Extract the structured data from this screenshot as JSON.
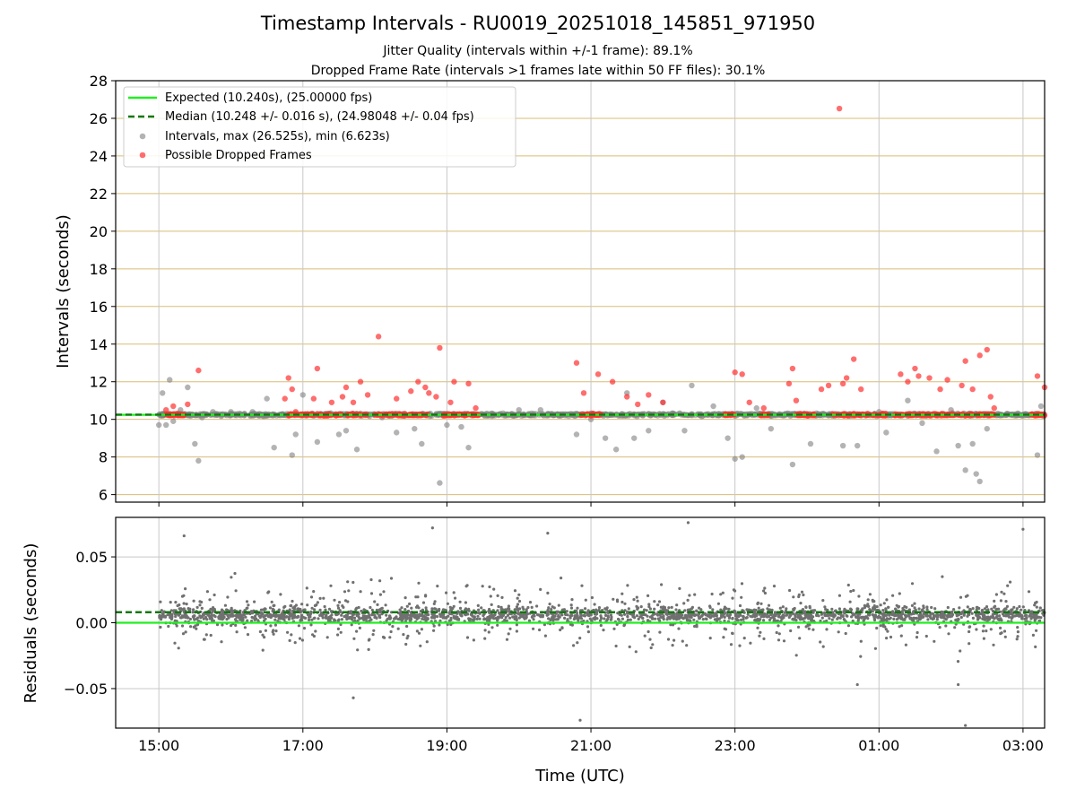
{
  "header": {
    "title": "Timestamp Intervals - RU0019_20251018_145851_971950",
    "subtitle_1": "Jitter Quality (intervals within +/-1 frame): 89.1%",
    "subtitle_2": "Dropped Frame Rate (intervals >1 frames late within 50 FF files): 30.1%"
  },
  "chart_data": [
    {
      "type": "scatter",
      "panel": "top",
      "xlabel": "",
      "ylabel": "Intervals (seconds)",
      "ylim": [
        5.6,
        28
      ],
      "yticks": [
        "6",
        "8",
        "10",
        "12",
        "14",
        "16",
        "18",
        "20",
        "22",
        "24",
        "26",
        "28"
      ],
      "grid": {
        "horizontal": true,
        "vertical": true,
        "horizontal_color": "#d9bd75",
        "vertical_color": "#c8c8c8"
      },
      "legend": {
        "placement": "top-left",
        "entries": [
          "Expected (10.240s), (25.00000 fps)",
          "Median (10.248 +/- 0.016 s), (24.98048 +/- 0.04 fps)",
          "Intervals, max (26.525s), min (6.623s)",
          "Possible Dropped Frames"
        ]
      },
      "expected_line": {
        "value": 10.24,
        "color": "#22ee22"
      },
      "median_line": {
        "value": 10.248,
        "color": "#117711"
      },
      "series": [
        {
          "name": "Intervals, max (26.525s), min (6.623s)",
          "color": "#808080",
          "points": [
            [
              15.0,
              9.7
            ],
            [
              15.05,
              11.4
            ],
            [
              15.1,
              9.7
            ],
            [
              15.15,
              12.1
            ],
            [
              15.2,
              9.9
            ],
            [
              15.3,
              10.5
            ],
            [
              15.4,
              11.7
            ],
            [
              15.5,
              8.7
            ],
            [
              15.55,
              7.8
            ],
            [
              15.6,
              10.1
            ],
            [
              15.75,
              10.4
            ],
            [
              16.0,
              10.4
            ],
            [
              16.3,
              10.4
            ],
            [
              16.5,
              11.1
            ],
            [
              16.6,
              8.5
            ],
            [
              16.85,
              8.1
            ],
            [
              16.9,
              9.2
            ],
            [
              17.0,
              11.3
            ],
            [
              17.2,
              8.8
            ],
            [
              17.5,
              9.2
            ],
            [
              17.6,
              9.4
            ],
            [
              17.75,
              8.4
            ],
            [
              18.1,
              10.1
            ],
            [
              18.3,
              9.3
            ],
            [
              18.55,
              9.5
            ],
            [
              18.65,
              8.7
            ],
            [
              18.9,
              6.62
            ],
            [
              19.0,
              9.7
            ],
            [
              19.2,
              9.6
            ],
            [
              19.3,
              8.5
            ],
            [
              20.0,
              10.5
            ],
            [
              20.3,
              10.5
            ],
            [
              20.8,
              9.2
            ],
            [
              21.0,
              10.0
            ],
            [
              21.2,
              9.0
            ],
            [
              21.35,
              8.4
            ],
            [
              21.5,
              11.4
            ],
            [
              21.6,
              9.0
            ],
            [
              21.8,
              9.4
            ],
            [
              22.0,
              10.9
            ],
            [
              22.3,
              9.4
            ],
            [
              22.4,
              11.8
            ],
            [
              22.7,
              10.7
            ],
            [
              22.9,
              9.0
            ],
            [
              23.0,
              7.9
            ],
            [
              23.1,
              8.0
            ],
            [
              23.3,
              10.6
            ],
            [
              23.5,
              9.5
            ],
            [
              23.8,
              7.6
            ],
            [
              24.05,
              8.7
            ],
            [
              24.3,
              10.2
            ],
            [
              24.5,
              8.6
            ],
            [
              24.7,
              8.6
            ],
            [
              25.0,
              10.4
            ],
            [
              25.1,
              9.3
            ],
            [
              25.4,
              11.0
            ],
            [
              25.6,
              9.8
            ],
            [
              25.8,
              8.3
            ],
            [
              26.0,
              10.5
            ],
            [
              26.1,
              8.6
            ],
            [
              26.2,
              7.3
            ],
            [
              26.3,
              8.7
            ],
            [
              26.35,
              7.1
            ],
            [
              26.4,
              6.7
            ],
            [
              26.5,
              9.5
            ],
            [
              27.2,
              8.1
            ],
            [
              27.25,
              10.7
            ]
          ]
        },
        {
          "name": "Possible Dropped Frames",
          "color": "#ff3030",
          "points": [
            [
              15.1,
              10.5
            ],
            [
              15.2,
              10.7
            ],
            [
              15.25,
              10.3
            ],
            [
              15.4,
              10.8
            ],
            [
              15.55,
              12.6
            ],
            [
              16.75,
              11.1
            ],
            [
              16.8,
              12.2
            ],
            [
              16.85,
              11.6
            ],
            [
              16.9,
              10.4
            ],
            [
              17.15,
              11.1
            ],
            [
              17.2,
              12.7
            ],
            [
              17.4,
              10.9
            ],
            [
              17.55,
              11.2
            ],
            [
              17.6,
              11.7
            ],
            [
              17.7,
              10.9
            ],
            [
              17.8,
              12.0
            ],
            [
              17.9,
              11.3
            ],
            [
              18.05,
              14.4
            ],
            [
              18.3,
              11.1
            ],
            [
              18.5,
              11.5
            ],
            [
              18.6,
              12.0
            ],
            [
              18.7,
              11.7
            ],
            [
              18.75,
              11.4
            ],
            [
              18.85,
              11.2
            ],
            [
              18.9,
              13.8
            ],
            [
              19.05,
              10.9
            ],
            [
              19.1,
              12.0
            ],
            [
              19.3,
              11.9
            ],
            [
              19.4,
              10.6
            ],
            [
              20.8,
              13.0
            ],
            [
              20.9,
              11.4
            ],
            [
              21.1,
              12.4
            ],
            [
              21.3,
              12.0
            ],
            [
              21.5,
              11.2
            ],
            [
              21.65,
              10.8
            ],
            [
              21.8,
              11.3
            ],
            [
              22.0,
              10.9
            ],
            [
              23.0,
              12.5
            ],
            [
              23.1,
              12.4
            ],
            [
              23.2,
              10.9
            ],
            [
              23.4,
              10.6
            ],
            [
              23.75,
              11.9
            ],
            [
              23.8,
              12.7
            ],
            [
              23.85,
              11.0
            ],
            [
              24.2,
              11.6
            ],
            [
              24.3,
              11.8
            ],
            [
              24.5,
              11.9
            ],
            [
              24.55,
              12.2
            ],
            [
              24.65,
              13.2
            ],
            [
              24.75,
              11.6
            ],
            [
              25.3,
              12.4
            ],
            [
              25.4,
              12.0
            ],
            [
              25.5,
              12.7
            ],
            [
              25.55,
              12.3
            ],
            [
              25.7,
              12.2
            ],
            [
              25.85,
              11.6
            ],
            [
              25.95,
              12.1
            ],
            [
              26.15,
              11.8
            ],
            [
              26.2,
              13.1
            ],
            [
              26.3,
              11.6
            ],
            [
              26.4,
              13.4
            ],
            [
              26.5,
              13.7
            ],
            [
              26.55,
              11.2
            ],
            [
              26.6,
              10.6
            ],
            [
              27.2,
              12.3
            ],
            [
              27.3,
              11.7
            ],
            [
              24.45,
              26.52
            ]
          ]
        }
      ]
    },
    {
      "type": "scatter",
      "panel": "bottom",
      "xlabel": "Time (UTC)",
      "ylabel": "Residuals (seconds)",
      "ylim": [
        -0.08,
        0.08
      ],
      "yticks": [
        "0.05",
        "0.00",
        "−0.05"
      ],
      "xticks": [
        "15:00",
        "17:00",
        "19:00",
        "21:00",
        "23:00",
        "01:00",
        "03:00"
      ],
      "xlim_hours": [
        14.4,
        27.3
      ],
      "grid": {
        "horizontal": true,
        "vertical": true
      },
      "expected_line": {
        "value": 0.0,
        "color": "#22ee22"
      },
      "median_line": {
        "value": 0.008,
        "color": "#117711"
      },
      "series": [
        {
          "name": "Residuals",
          "color": "#707070",
          "outliers": [
            [
              15.35,
              0.066
            ],
            [
              17.7,
              -0.057
            ],
            [
              18.8,
              0.072
            ],
            [
              20.4,
              0.068
            ],
            [
              20.85,
              -0.074
            ],
            [
              22.35,
              0.076
            ],
            [
              26.1,
              -0.047
            ],
            [
              26.2,
              -0.078
            ],
            [
              27.0,
              0.071
            ],
            [
              24.7,
              -0.047
            ]
          ]
        }
      ]
    }
  ]
}
